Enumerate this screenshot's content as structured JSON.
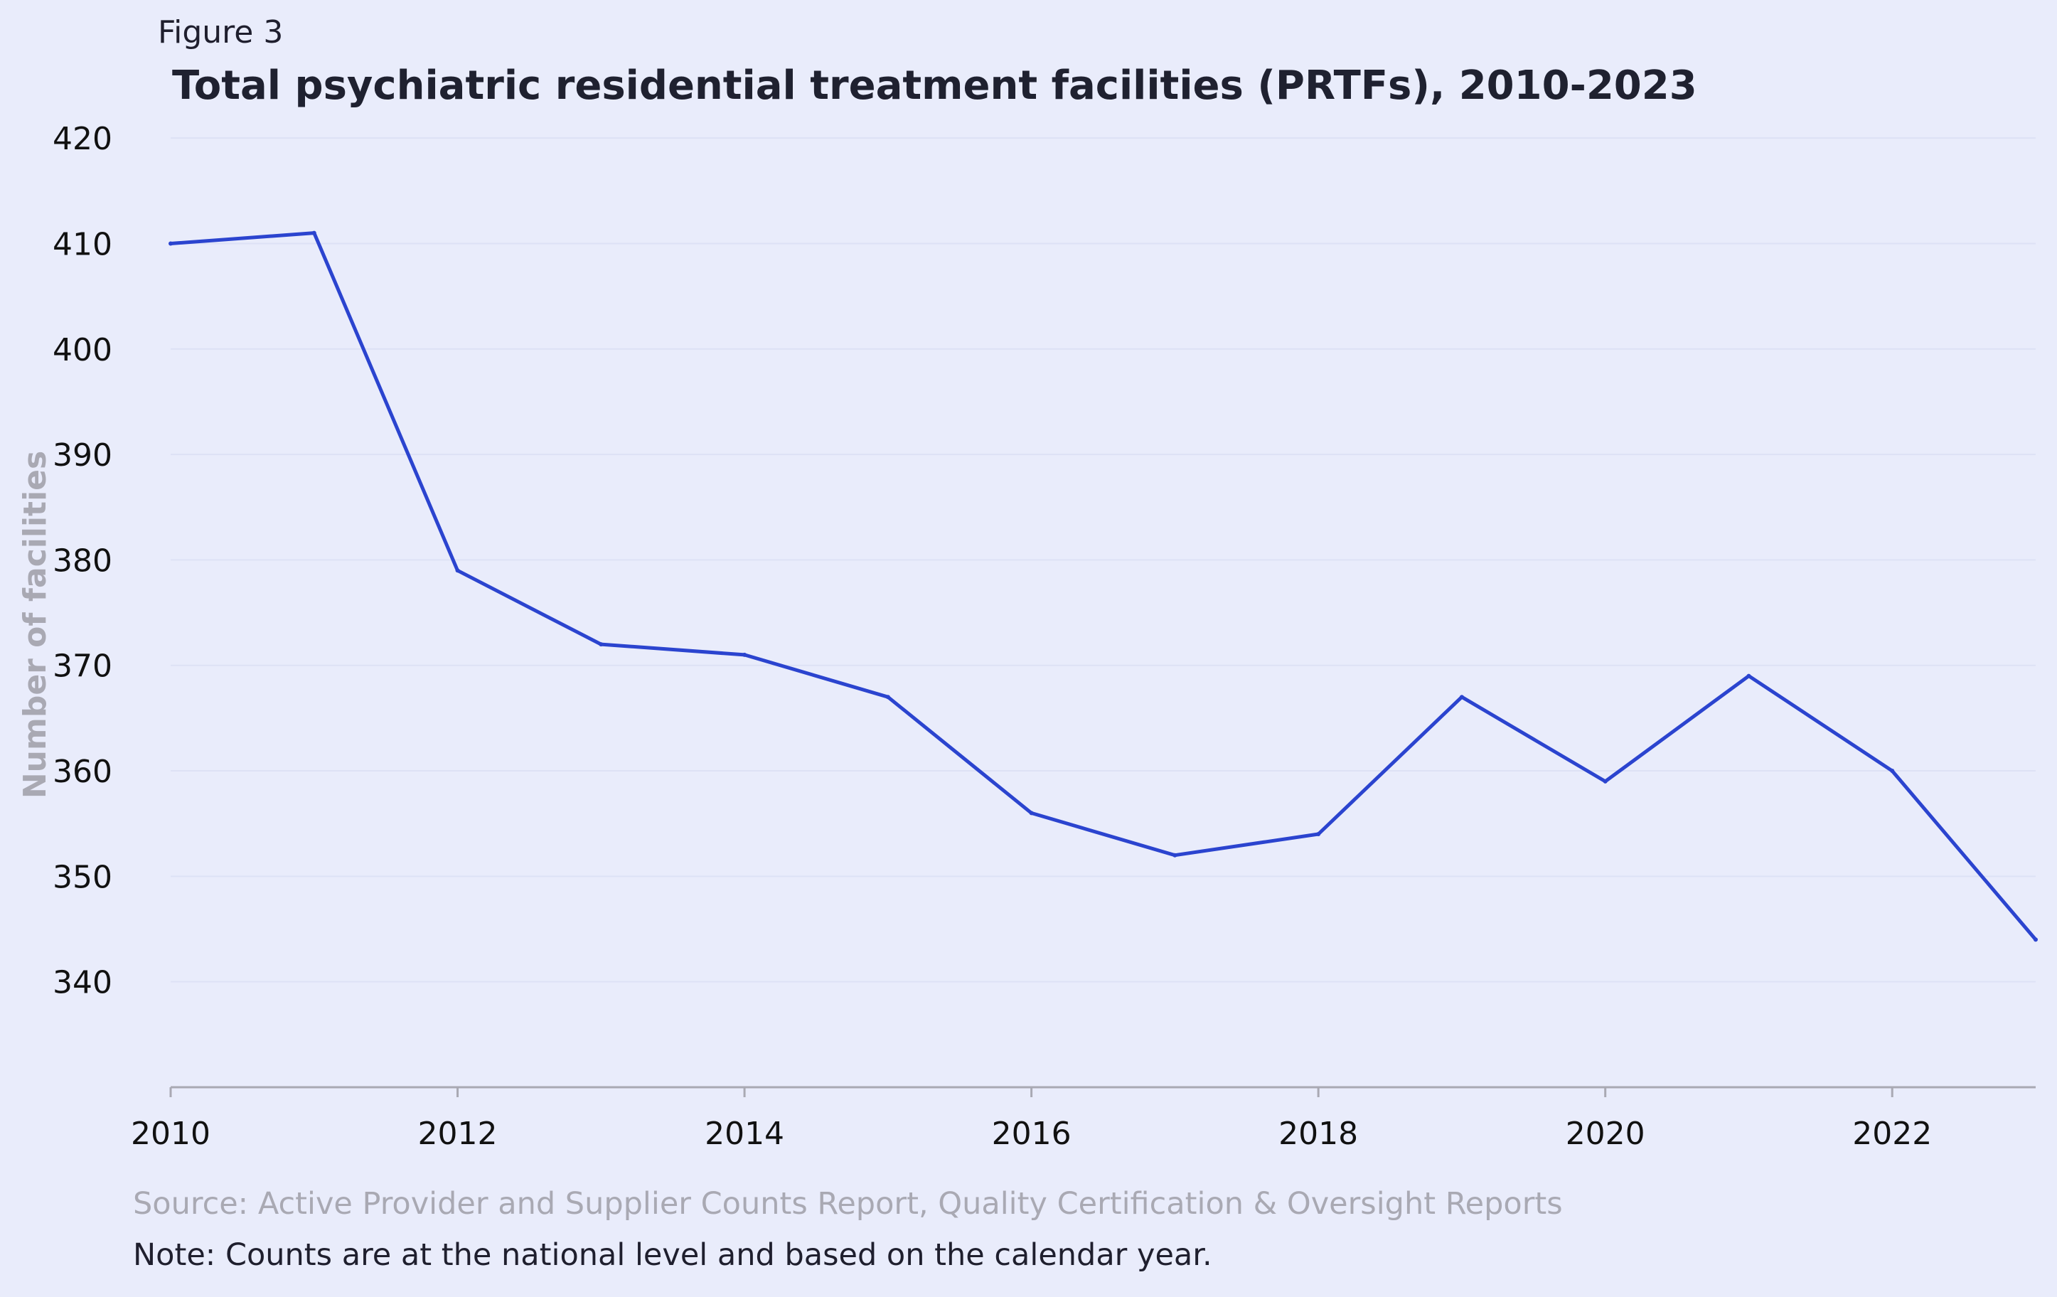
{
  "figure_label": "Figure 3",
  "source": "Source: Active Provider and Supplier Counts Report, Quality Certification & Oversight Reports",
  "note": "Note: Counts are at the national level and based on the calendar year.",
  "colors": {
    "background": "#e9ecfb",
    "line": "#2b44cf",
    "gridline": "#dde1f5",
    "axis": "#a9a9b3"
  },
  "chart_data": {
    "type": "line",
    "title": "Total psychiatric residential treatment facilities (PRTFs), 2010-2023",
    "xlabel": "",
    "ylabel": "Number of facilities",
    "x": [
      2010,
      2011,
      2012,
      2013,
      2014,
      2015,
      2016,
      2017,
      2018,
      2019,
      2020,
      2021,
      2022,
      2023
    ],
    "series": [
      {
        "values": [
          410,
          411,
          379,
          372,
          371,
          367,
          356,
          352,
          354,
          367,
          359,
          369,
          360,
          344
        ]
      }
    ],
    "xlim": [
      2010,
      2023
    ],
    "ylim": [
      330,
      425
    ],
    "xticks": [
      "2010",
      "2012",
      "2014",
      "2016",
      "2018",
      "2020",
      "2022"
    ],
    "yticks": [
      "340",
      "350",
      "360",
      "370",
      "380",
      "390",
      "400",
      "410",
      "420"
    ],
    "grid": "horizontal",
    "legend": "none"
  }
}
